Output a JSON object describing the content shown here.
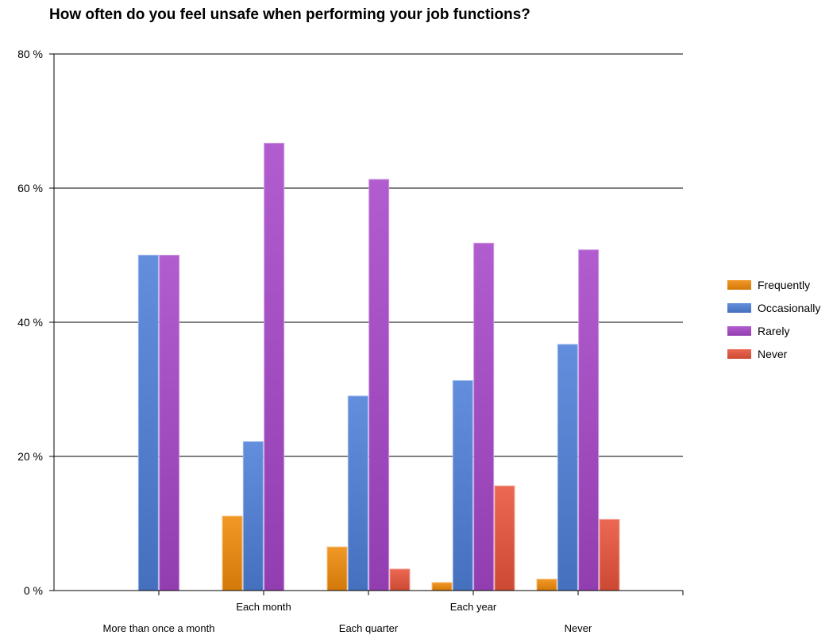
{
  "chart_data": {
    "type": "bar",
    "title": "How often do you feel unsafe when performing your job functions?",
    "xlabel": "",
    "ylabel": "",
    "ylim": [
      0,
      80
    ],
    "yticks": [
      0,
      20,
      40,
      60,
      80
    ],
    "ytick_labels": [
      "0 %",
      "20 %",
      "40 %",
      "60 %",
      "80 %"
    ],
    "grid": true,
    "legend_position": "right",
    "categories": [
      "More than once a month",
      "Each month",
      "Each quarter",
      "Each year",
      "Never"
    ],
    "series": [
      {
        "name": "Frequently",
        "color": "#f08a0a",
        "values": [
          0,
          11.1,
          6.5,
          1.2,
          1.7
        ]
      },
      {
        "name": "Occasionally",
        "color": "#4d7fd8",
        "values": [
          50,
          22.2,
          29,
          31.3,
          36.7
        ]
      },
      {
        "name": "Rarely",
        "color": "#a647c8",
        "values": [
          50,
          66.7,
          61.3,
          51.8,
          50.8
        ]
      },
      {
        "name": "Never",
        "color": "#e8533a",
        "values": [
          0,
          0,
          3.2,
          15.6,
          10.6
        ]
      }
    ]
  }
}
